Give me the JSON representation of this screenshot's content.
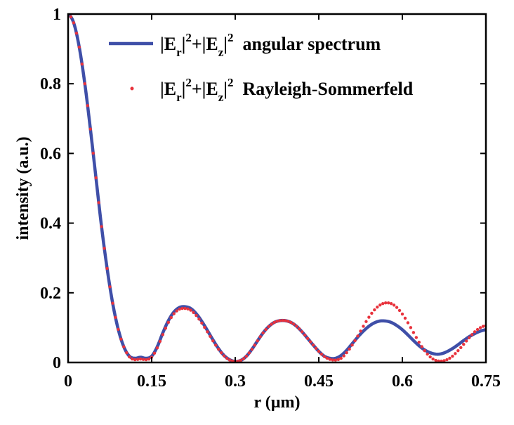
{
  "chart_data": {
    "type": "line",
    "title": "",
    "xlabel": "r (µm)",
    "ylabel": "intensity (a.u.)",
    "xlim": [
      0,
      0.75
    ],
    "ylim": [
      0,
      1
    ],
    "x_ticks": [
      0,
      0.15,
      0.3,
      0.45,
      0.6,
      0.75
    ],
    "x_tick_labels": [
      "0",
      "0.15",
      "0.3",
      "0.45",
      "0.6",
      "0.75"
    ],
    "y_ticks": [
      0,
      0.2,
      0.4,
      0.6,
      0.8,
      1
    ],
    "y_tick_labels": [
      "0",
      "0.2",
      "0.4",
      "0.6",
      "0.8",
      "1"
    ],
    "grid": false,
    "legend_position": "top-right",
    "legend": [
      {
        "series": "angular",
        "prefix": "|E",
        "sub1": "r",
        "mid": "|",
        "sup1": "2",
        "plus": "+|E",
        "sub2": "z",
        "end": "|",
        "sup2": "2",
        "text": "angular spectrum"
      },
      {
        "series": "rs",
        "prefix": "|E",
        "sub1": "r",
        "mid": "|",
        "sup1": "2",
        "plus": "+|E",
        "sub2": "z",
        "end": "|",
        "sup2": "2",
        "text": "Rayleigh-Sommerfeld"
      }
    ],
    "colors": {
      "angular": "#3f4fa8",
      "rs": "#e8323c"
    },
    "series": [
      {
        "key": "angular",
        "style": "solid line",
        "x": [
          0,
          0.01,
          0.02,
          0.03,
          0.04,
          0.05,
          0.06,
          0.07,
          0.08,
          0.09,
          0.1,
          0.11,
          0.12,
          0.13,
          0.14,
          0.15,
          0.16,
          0.17,
          0.18,
          0.19,
          0.2,
          0.21,
          0.22,
          0.23,
          0.24,
          0.25,
          0.26,
          0.27,
          0.28,
          0.29,
          0.3,
          0.31,
          0.32,
          0.33,
          0.34,
          0.35,
          0.36,
          0.37,
          0.38,
          0.39,
          0.4,
          0.41,
          0.42,
          0.43,
          0.44,
          0.45,
          0.46,
          0.47,
          0.48,
          0.49,
          0.5,
          0.51,
          0.52,
          0.53,
          0.54,
          0.55,
          0.56,
          0.57,
          0.58,
          0.59,
          0.6,
          0.61,
          0.62,
          0.63,
          0.64,
          0.65,
          0.66,
          0.67,
          0.68,
          0.69,
          0.7,
          0.71,
          0.72,
          0.73,
          0.74,
          0.75
        ],
        "y": [
          1.0,
          0.975,
          0.905,
          0.8,
          0.67,
          0.53,
          0.39,
          0.27,
          0.17,
          0.095,
          0.045,
          0.018,
          0.012,
          0.015,
          0.012,
          0.018,
          0.045,
          0.085,
          0.12,
          0.145,
          0.158,
          0.16,
          0.155,
          0.14,
          0.118,
          0.092,
          0.065,
          0.04,
          0.02,
          0.008,
          0.003,
          0.006,
          0.018,
          0.038,
          0.062,
          0.085,
          0.103,
          0.115,
          0.12,
          0.12,
          0.115,
          0.104,
          0.088,
          0.069,
          0.05,
          0.032,
          0.018,
          0.012,
          0.012,
          0.02,
          0.035,
          0.054,
          0.073,
          0.09,
          0.104,
          0.114,
          0.119,
          0.119,
          0.115,
          0.106,
          0.094,
          0.079,
          0.063,
          0.048,
          0.036,
          0.028,
          0.024,
          0.025,
          0.031,
          0.04,
          0.051,
          0.063,
          0.074,
          0.083,
          0.09,
          0.094
        ]
      },
      {
        "key": "rs",
        "style": "dotted",
        "x": [
          0,
          0.01,
          0.02,
          0.03,
          0.04,
          0.05,
          0.06,
          0.07,
          0.08,
          0.09,
          0.1,
          0.11,
          0.12,
          0.13,
          0.14,
          0.15,
          0.16,
          0.17,
          0.18,
          0.19,
          0.2,
          0.21,
          0.22,
          0.23,
          0.24,
          0.25,
          0.26,
          0.27,
          0.28,
          0.29,
          0.3,
          0.31,
          0.32,
          0.33,
          0.34,
          0.35,
          0.36,
          0.37,
          0.38,
          0.39,
          0.4,
          0.41,
          0.42,
          0.43,
          0.44,
          0.45,
          0.46,
          0.47,
          0.48,
          0.49,
          0.5,
          0.51,
          0.52,
          0.53,
          0.54,
          0.55,
          0.56,
          0.57,
          0.58,
          0.59,
          0.6,
          0.61,
          0.62,
          0.63,
          0.64,
          0.65,
          0.66,
          0.67,
          0.68,
          0.69,
          0.7,
          0.71,
          0.72,
          0.73,
          0.74,
          0.75
        ],
        "y": [
          1.0,
          0.975,
          0.905,
          0.8,
          0.67,
          0.53,
          0.39,
          0.27,
          0.17,
          0.095,
          0.045,
          0.016,
          0.008,
          0.01,
          0.008,
          0.015,
          0.042,
          0.08,
          0.115,
          0.14,
          0.153,
          0.155,
          0.15,
          0.135,
          0.113,
          0.088,
          0.062,
          0.038,
          0.019,
          0.007,
          0.003,
          0.006,
          0.018,
          0.038,
          0.062,
          0.085,
          0.103,
          0.115,
          0.12,
          0.12,
          0.115,
          0.104,
          0.088,
          0.069,
          0.05,
          0.032,
          0.017,
          0.009,
          0.007,
          0.012,
          0.028,
          0.05,
          0.076,
          0.104,
          0.13,
          0.151,
          0.165,
          0.171,
          0.169,
          0.158,
          0.139,
          0.114,
          0.086,
          0.058,
          0.034,
          0.016,
          0.006,
          0.004,
          0.008,
          0.018,
          0.034,
          0.052,
          0.071,
          0.088,
          0.1,
          0.106
        ]
      }
    ]
  }
}
